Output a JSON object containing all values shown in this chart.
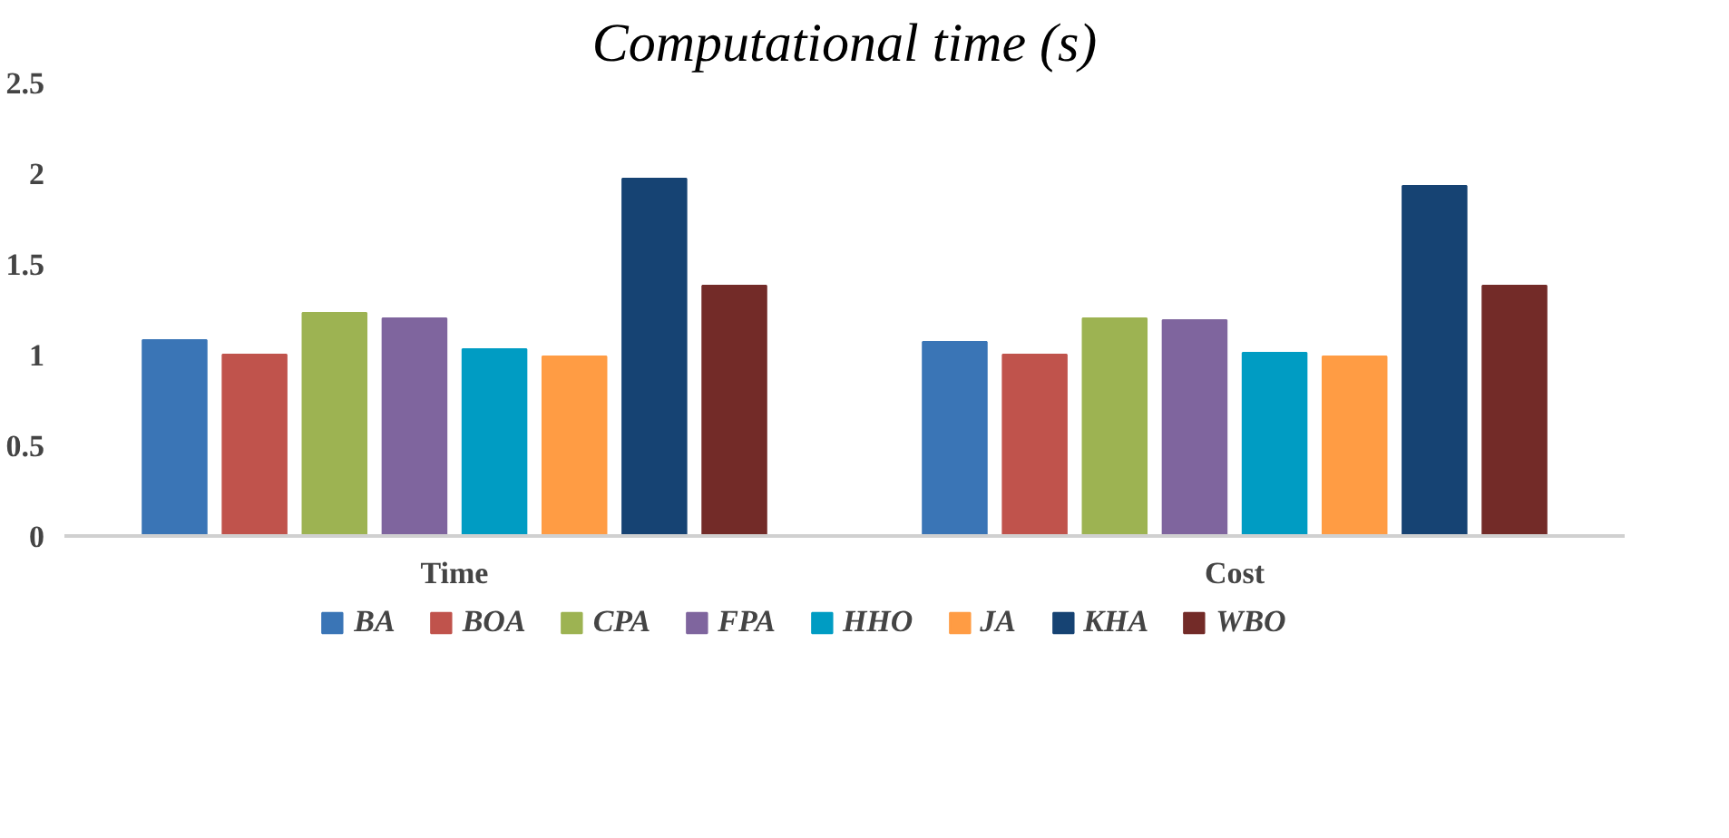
{
  "chart_data": {
    "type": "bar",
    "title": "Computational time (s)",
    "categories": [
      "Time",
      "Cost"
    ],
    "series": [
      {
        "name": "BA",
        "color": "#3a75b6",
        "values": [
          1.08,
          1.07
        ]
      },
      {
        "name": "BOA",
        "color": "#c0534c",
        "values": [
          1.0,
          1.0
        ]
      },
      {
        "name": "CPA",
        "color": "#9db352",
        "values": [
          1.23,
          1.2
        ]
      },
      {
        "name": "FPA",
        "color": "#7f659e",
        "values": [
          1.2,
          1.19
        ]
      },
      {
        "name": "HHO",
        "color": "#009cc3",
        "values": [
          1.03,
          1.01
        ]
      },
      {
        "name": "JA",
        "color": "#ff9c44",
        "values": [
          0.99,
          0.99
        ]
      },
      {
        "name": "KHA",
        "color": "#164373",
        "values": [
          1.97,
          1.93
        ]
      },
      {
        "name": "WBO",
        "color": "#732b28",
        "values": [
          1.38,
          1.38
        ]
      }
    ],
    "ylim": [
      0,
      2.5
    ],
    "yticks": [
      0,
      0.5,
      1,
      1.5,
      2,
      2.5
    ],
    "grid": false,
    "legend": "bottom"
  }
}
